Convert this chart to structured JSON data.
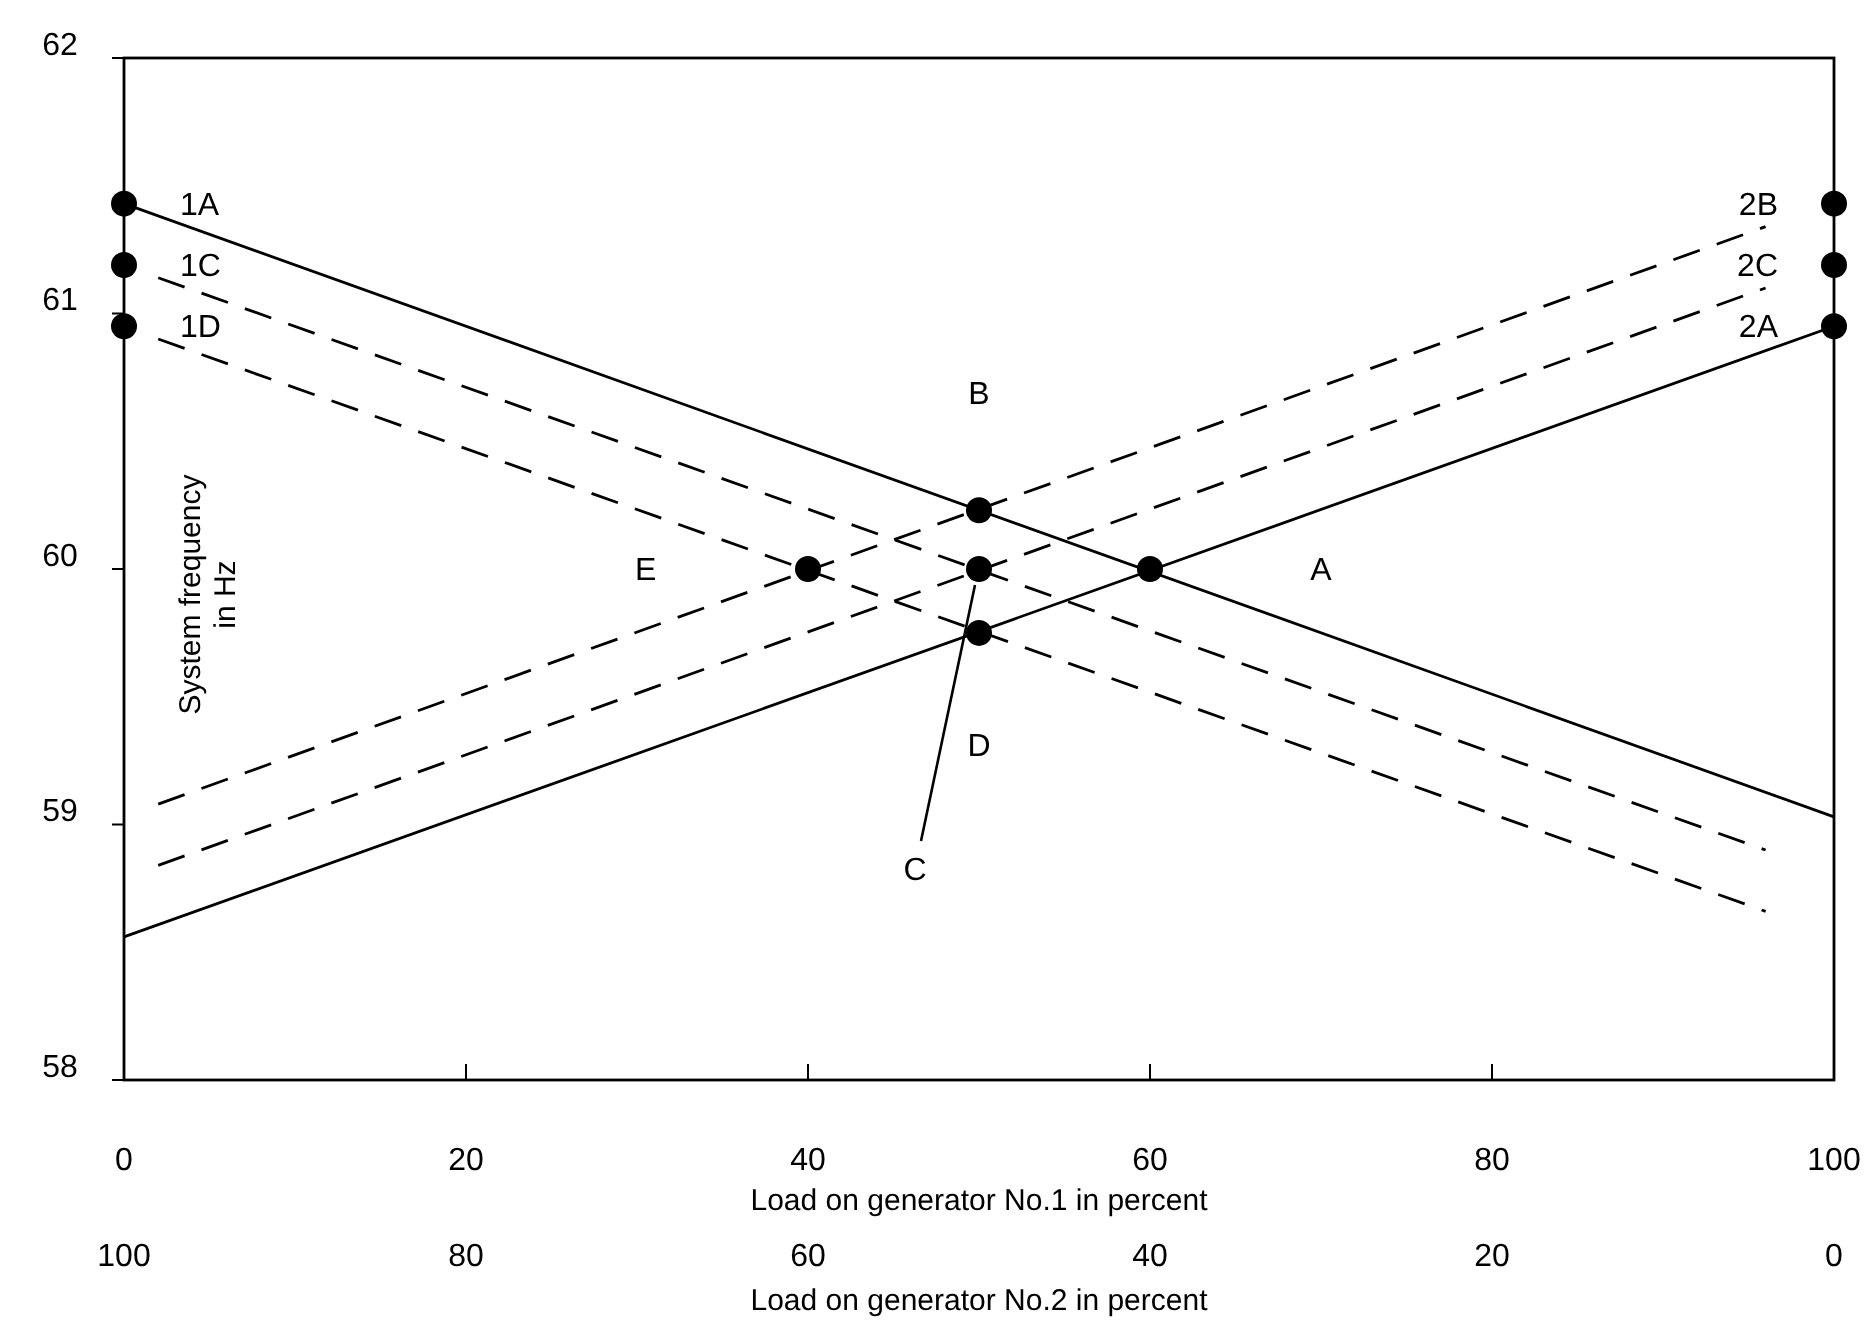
{
  "chart_data": {
    "type": "line",
    "xlabel": "Load on generator No.1 in percent",
    "ylabel": "System frequency in Hz",
    "x2label": "Load on generator No.2 in percent",
    "xlim": [
      0,
      100
    ],
    "xticks": [
      0,
      20,
      40,
      60,
      80,
      100
    ],
    "x2lim": [
      100,
      0
    ],
    "x2ticks": [
      100,
      80,
      60,
      40,
      20,
      0
    ],
    "ylim": [
      58,
      62
    ],
    "yticks": [
      58,
      59,
      60,
      61,
      62
    ],
    "grid": false,
    "series": [
      {
        "color": "#000000",
        "line_style": "solid",
        "marker": "none",
        "x": [
          0,
          100
        ],
        "values": [
          61.43,
          59.03
        ]
      },
      {
        "color": "#000000",
        "line_style": "solid",
        "marker": "none",
        "x": [
          0,
          100
        ],
        "values": [
          58.56,
          60.95
        ]
      },
      {
        "color": "#000000",
        "line_style": "dashed",
        "marker": "none",
        "x": [
          2,
          96
        ],
        "values": [
          61.14,
          58.9
        ]
      },
      {
        "color": "#000000",
        "line_style": "dashed",
        "marker": "none",
        "x": [
          2,
          96
        ],
        "values": [
          60.9,
          58.66
        ]
      },
      {
        "color": "#000000",
        "line_style": "dashed",
        "marker": "none",
        "x": [
          2,
          96
        ],
        "values": [
          59.08,
          61.34
        ]
      },
      {
        "color": "#000000",
        "line_style": "dashed",
        "marker": "none",
        "x": [
          2,
          96
        ],
        "values": [
          58.84,
          61.1
        ]
      },
      {
        "type": "scatter",
        "color": "#000000",
        "marker": "circle",
        "x": [
          0,
          0,
          0,
          100,
          100,
          100,
          40,
          50,
          50,
          50,
          60
        ],
        "values": [
          61.43,
          61.19,
          60.95,
          61.43,
          61.19,
          60.95,
          60,
          60.23,
          60,
          59.75,
          60
        ]
      }
    ],
    "annotations": [
      {
        "text": "1A",
        "x": 0,
        "y": 61.43
      },
      {
        "text": "1C",
        "x": 0,
        "y": 61.19
      },
      {
        "text": "1D",
        "x": 0,
        "y": 60.95
      },
      {
        "text": "2B",
        "x": 100,
        "y": 61.43
      },
      {
        "text": "2C",
        "x": 100,
        "y": 61.19
      },
      {
        "text": "2A",
        "x": 100,
        "y": 60.95
      },
      "B",
      "E",
      "A",
      "D",
      {
        "text": "C",
        "x": 50,
        "y": 60
      }
    ]
  }
}
